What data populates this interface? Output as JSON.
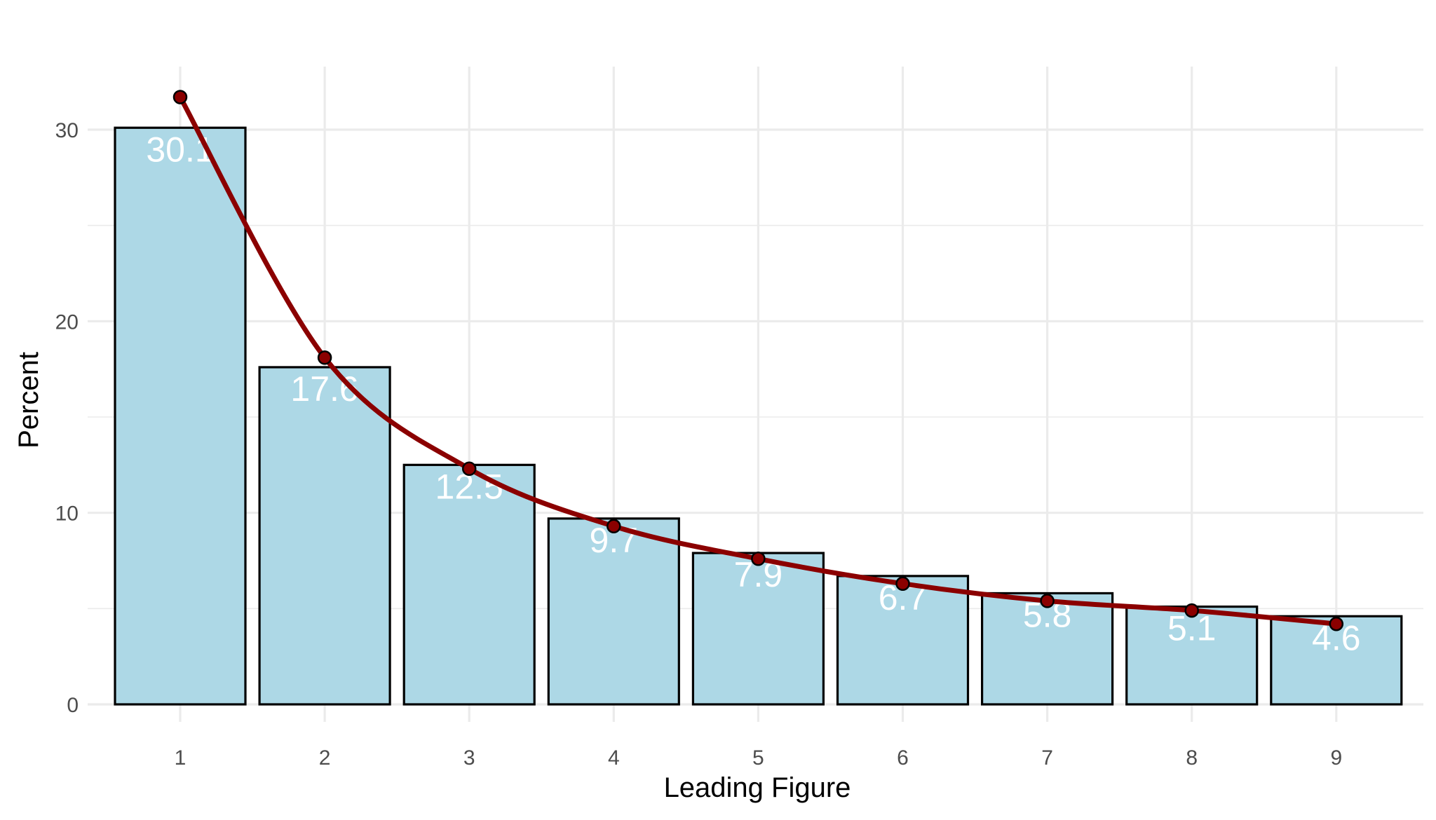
{
  "chart_data": {
    "type": "bar",
    "title": "",
    "xlabel": "Leading Figure",
    "ylabel": "Percent",
    "categories": [
      "1",
      "2",
      "3",
      "4",
      "5",
      "6",
      "7",
      "8",
      "9"
    ],
    "series": [
      {
        "type": "bar",
        "values": [
          30.1,
          17.6,
          12.5,
          9.7,
          7.9,
          6.7,
          5.8,
          5.1,
          4.6
        ],
        "labels": [
          "30.1",
          "17.6",
          "12.5",
          "9.7",
          "7.9",
          "6.7",
          "5.8",
          "5.1",
          "4.6"
        ],
        "color": "#ADD8E6",
        "border_color": "#000000"
      },
      {
        "type": "line",
        "values": [
          31.7,
          18.1,
          12.3,
          9.3,
          7.6,
          6.3,
          5.4,
          4.9,
          4.2
        ],
        "color": "#8B0000"
      }
    ],
    "yticks": [
      0,
      10,
      20,
      30
    ],
    "ylim": [
      0,
      32
    ],
    "grid": true,
    "legend": "none"
  }
}
